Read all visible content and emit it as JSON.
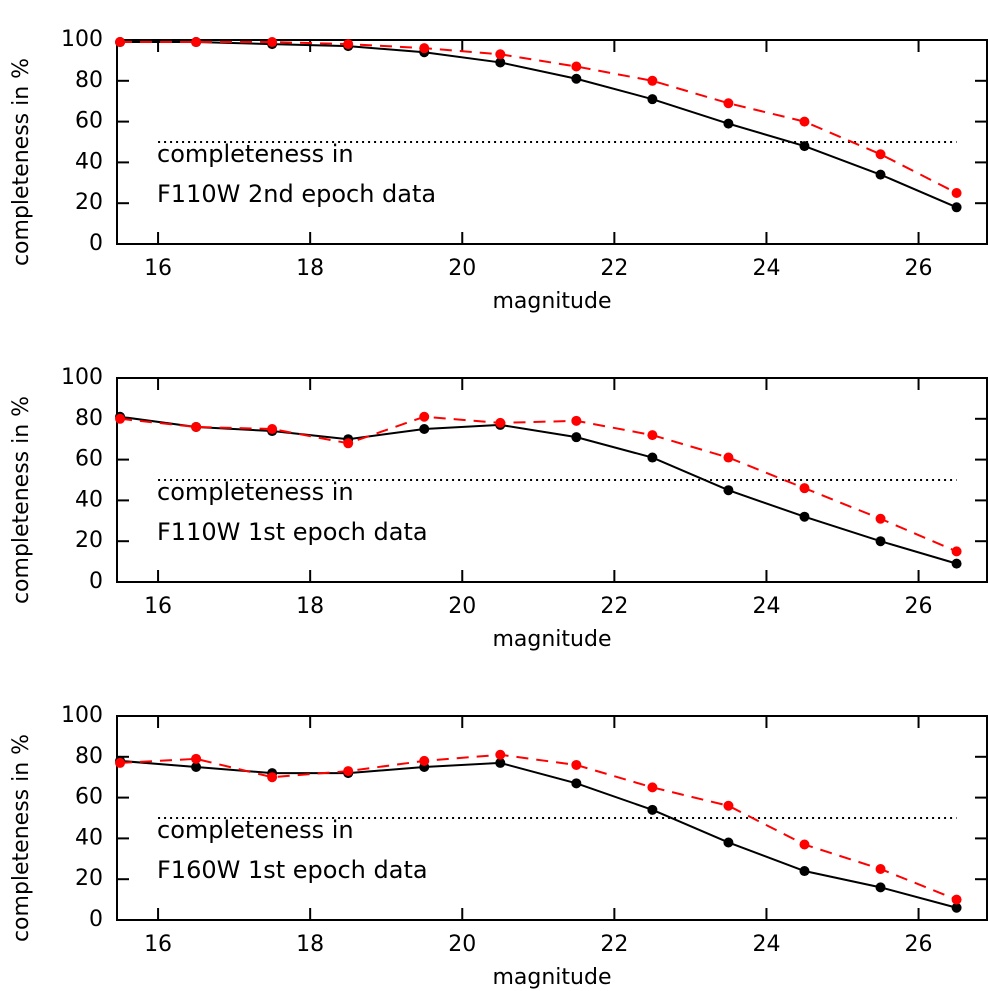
{
  "chart_data": [
    {
      "type": "line",
      "xlabel": "magnitude",
      "ylabel": "completeness in %",
      "annotations": [
        "completeness in",
        "F110W 2nd epoch data"
      ],
      "hline": {
        "y": 50,
        "x": [
          16,
          26.5
        ]
      },
      "x": [
        15.5,
        16.5,
        17.5,
        18.5,
        19.5,
        20.5,
        21.5,
        22.5,
        23.5,
        24.5,
        25.5,
        26.5
      ],
      "series": [
        {
          "color": "#000000",
          "dash": false,
          "values": [
            99,
            99,
            98,
            97,
            94,
            89,
            81,
            71,
            59,
            48,
            34,
            18
          ]
        },
        {
          "color": "#ff0000",
          "dash": true,
          "values": [
            99,
            99,
            99,
            98,
            96,
            93,
            87,
            80,
            69,
            60,
            44,
            25
          ]
        }
      ],
      "xlim": [
        15.46,
        26.9
      ],
      "xticks": [
        16,
        18,
        20,
        22,
        24,
        26
      ],
      "ylim": [
        0,
        100
      ],
      "yticks": [
        0,
        20,
        40,
        60,
        80,
        100
      ]
    },
    {
      "type": "line",
      "xlabel": "magnitude",
      "ylabel": "completeness in %",
      "annotations": [
        "completeness in",
        "F110W 1st epoch data"
      ],
      "hline": {
        "y": 50,
        "x": [
          16,
          26.5
        ]
      },
      "x": [
        15.5,
        16.5,
        17.5,
        18.5,
        19.5,
        20.5,
        21.5,
        22.5,
        23.5,
        24.5,
        25.5,
        26.5
      ],
      "series": [
        {
          "color": "#000000",
          "dash": false,
          "values": [
            81,
            76,
            74,
            70,
            75,
            77,
            71,
            61,
            45,
            32,
            20,
            9
          ]
        },
        {
          "color": "#ff0000",
          "dash": true,
          "values": [
            80,
            76,
            75,
            68,
            81,
            78,
            79,
            72,
            61,
            46,
            31,
            15
          ]
        }
      ],
      "xlim": [
        15.46,
        26.9
      ],
      "xticks": [
        16,
        18,
        20,
        22,
        24,
        26
      ],
      "ylim": [
        0,
        100
      ],
      "yticks": [
        0,
        20,
        40,
        60,
        80,
        100
      ]
    },
    {
      "type": "line",
      "xlabel": "magnitude",
      "ylabel": "completeness in %",
      "annotations": [
        "completeness in",
        "F160W 1st epoch data"
      ],
      "hline": {
        "y": 50,
        "x": [
          16,
          26.5
        ]
      },
      "x": [
        15.5,
        16.5,
        17.5,
        18.5,
        19.5,
        20.5,
        21.5,
        22.5,
        23.5,
        24.5,
        25.5,
        26.5
      ],
      "series": [
        {
          "color": "#000000",
          "dash": false,
          "values": [
            78,
            75,
            72,
            72,
            75,
            77,
            67,
            54,
            38,
            24,
            16,
            6
          ]
        },
        {
          "color": "#ff0000",
          "dash": true,
          "values": [
            77,
            79,
            70,
            73,
            78,
            81,
            76,
            65,
            56,
            37,
            25,
            10
          ]
        }
      ],
      "xlim": [
        15.46,
        26.9
      ],
      "xticks": [
        16,
        18,
        20,
        22,
        24,
        26
      ],
      "ylim": [
        0,
        100
      ],
      "yticks": [
        0,
        20,
        40,
        60,
        80,
        100
      ]
    }
  ]
}
